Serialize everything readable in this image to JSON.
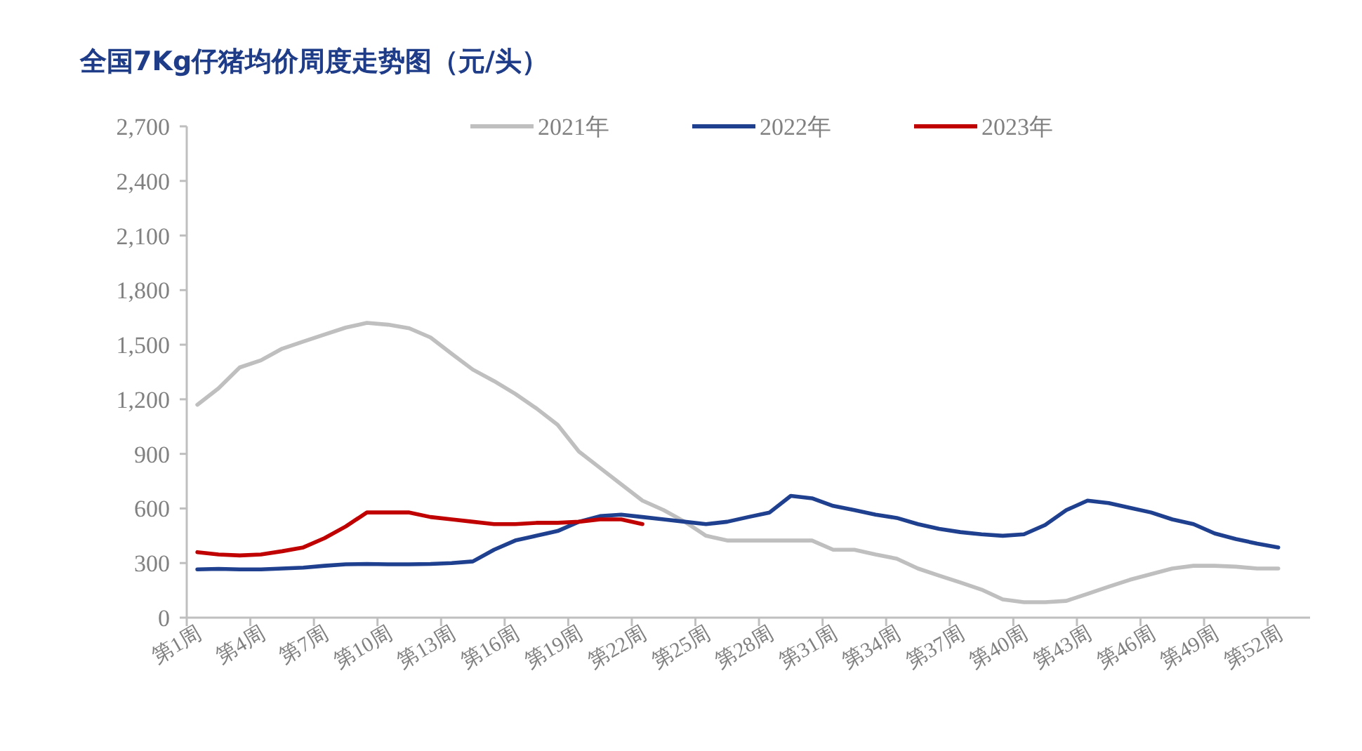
{
  "chart_data": {
    "type": "line",
    "title": "全国7Kg仔猪均价周度走势图（元/头）",
    "categories": [
      "第1周",
      null,
      null,
      "第4周",
      null,
      null,
      "第7周",
      null,
      null,
      "第10周",
      null,
      null,
      "第13周",
      null,
      null,
      "第16周",
      null,
      null,
      "第19周",
      null,
      null,
      "第22周",
      null,
      null,
      "第25周",
      null,
      null,
      "第28周",
      null,
      null,
      "第31周",
      null,
      null,
      "第34周",
      null,
      null,
      "第37周",
      null,
      null,
      "第40周",
      null,
      null,
      "第43周",
      null,
      null,
      "第46周",
      null,
      null,
      "第49周",
      null,
      null,
      "第52周"
    ],
    "series": [
      {
        "name": "2021年",
        "color": "#bfbfbf",
        "values": [
          1170,
          1260,
          1375,
          1414,
          1478,
          1517,
          1556,
          1594,
          1620,
          1610,
          1590,
          1540,
          1450,
          1363,
          1300,
          1230,
          1150,
          1060,
          913,
          823,
          733,
          643,
          591,
          527,
          450,
          424,
          424,
          424,
          424,
          424,
          373,
          373,
          347,
          324,
          270,
          231,
          193,
          154,
          100,
          85,
          85,
          92,
          131,
          170,
          208,
          239,
          270,
          285,
          285,
          280,
          270,
          270
        ]
      },
      {
        "name": "2022年",
        "color": "#1f3f8f",
        "values": [
          265,
          268,
          265,
          265,
          270,
          275,
          285,
          293,
          295,
          293,
          293,
          295,
          300,
          309,
          373,
          424,
          450,
          476,
          527,
          558,
          566,
          553,
          540,
          527,
          514,
          527,
          553,
          578,
          669,
          656,
          614,
          591,
          566,
          548,
          514,
          488,
          470,
          458,
          450,
          458,
          509,
          591,
          643,
          630,
          604,
          578,
          540,
          514,
          463,
          432,
          407,
          386
        ]
      },
      {
        "name": "2023年",
        "color": "#c00000",
        "values": [
          360,
          347,
          342,
          347,
          365,
          386,
          437,
          501,
          578,
          578,
          578,
          553,
          540,
          527,
          514,
          514,
          521,
          521,
          527,
          540,
          540,
          514,
          null,
          null,
          null,
          null,
          null,
          null,
          null,
          null,
          null,
          null,
          null,
          null,
          null,
          null,
          null,
          null,
          null,
          null,
          null,
          null,
          null,
          null,
          null,
          null,
          null,
          null,
          null,
          null,
          null,
          null
        ]
      }
    ],
    "ylim": [
      0,
      2700
    ],
    "yticks": [
      {
        "value": 0,
        "label": "0"
      },
      {
        "value": 300,
        "label": "300"
      },
      {
        "value": 600,
        "label": "600"
      },
      {
        "value": 900,
        "label": "900"
      },
      {
        "value": 1200,
        "label": "1,200"
      },
      {
        "value": 1500,
        "label": "1,500"
      },
      {
        "value": 1800,
        "label": "1,800"
      },
      {
        "value": 2100,
        "label": "2,100"
      },
      {
        "value": 2400,
        "label": "2,400"
      },
      {
        "value": 2700,
        "label": "2,700"
      }
    ],
    "grid": false,
    "legend": "top",
    "marker": "none",
    "line_style": "solid"
  }
}
